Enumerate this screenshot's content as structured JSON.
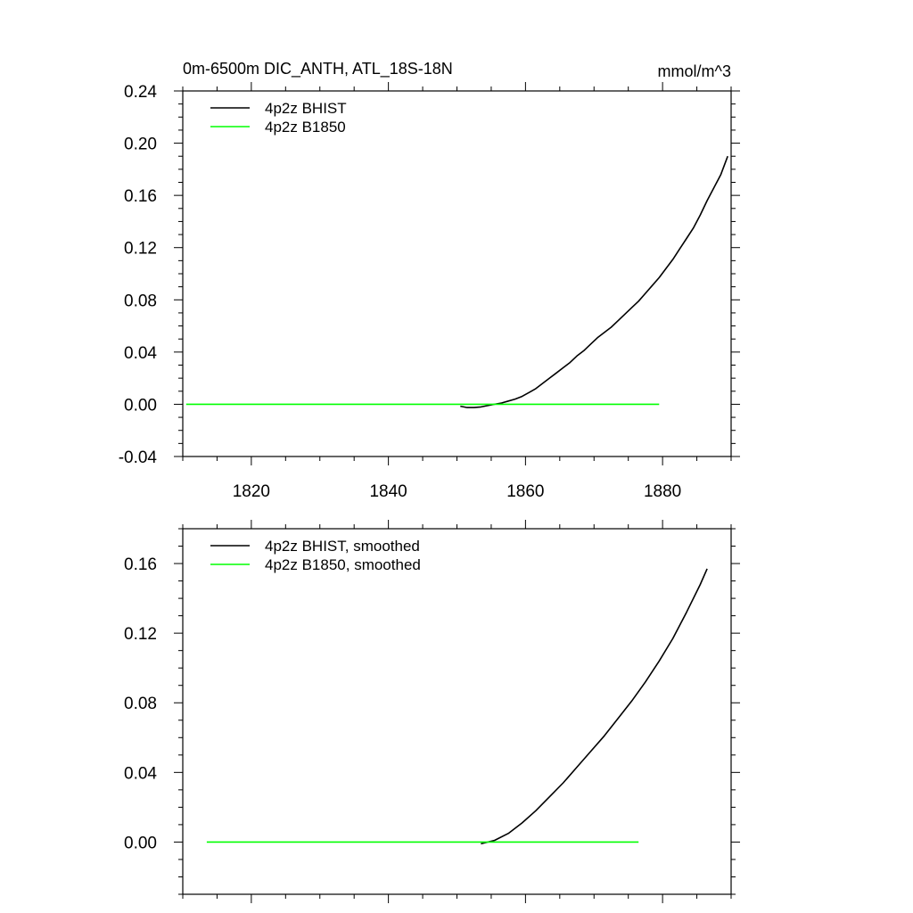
{
  "chart_data": [
    {
      "type": "line",
      "title": "0m-6500m DIC_ANTH, ATL_18S-18N",
      "units": "mmol/m^3",
      "xlabel": "",
      "ylabel": "",
      "xlim": [
        1810,
        1890
      ],
      "ylim": [
        -0.04,
        0.24
      ],
      "xticks": [
        1820,
        1840,
        1860,
        1880
      ],
      "xtick_labels": [
        "1820",
        "1840",
        "1860",
        "1880"
      ],
      "yticks": [
        -0.04,
        0.0,
        0.04,
        0.08,
        0.12,
        0.16,
        0.2,
        0.24
      ],
      "ytick_labels": [
        "-0.04",
        "0.00",
        "0.04",
        "0.08",
        "0.12",
        "0.16",
        "0.20",
        "0.24"
      ],
      "legend_position": "top-left",
      "grid": false,
      "series": [
        {
          "name": "4p2z BHIST",
          "color": "#000000",
          "x": [
            1850.5,
            1851.5,
            1852.5,
            1853.5,
            1854.5,
            1855.5,
            1856.5,
            1857.5,
            1858.5,
            1859.5,
            1860.5,
            1861.5,
            1862.5,
            1863.5,
            1864.5,
            1865.5,
            1866.5,
            1867.5,
            1868.5,
            1869.5,
            1870.5,
            1871.5,
            1872.5,
            1873.5,
            1874.5,
            1875.5,
            1876.5,
            1877.5,
            1878.5,
            1879.5,
            1880.5,
            1881.5,
            1882.5,
            1883.5,
            1884.5,
            1885.5,
            1886.5,
            1887.5,
            1888.5,
            1889.5
          ],
          "y": [
            -0.0015,
            -0.0025,
            -0.0025,
            -0.002,
            -0.001,
            0.0,
            0.001,
            0.0025,
            0.004,
            0.006,
            0.009,
            0.012,
            0.016,
            0.02,
            0.024,
            0.028,
            0.032,
            0.037,
            0.041,
            0.046,
            0.051,
            0.055,
            0.059,
            0.064,
            0.069,
            0.074,
            0.079,
            0.085,
            0.091,
            0.097,
            0.104,
            0.111,
            0.119,
            0.127,
            0.135,
            0.145,
            0.156,
            0.166,
            0.176,
            0.19
          ]
        },
        {
          "name": "4p2z B1850",
          "color": "#00ff00",
          "x": [
            1810.5,
            1879.5
          ],
          "y": [
            0.0,
            0.0
          ]
        }
      ]
    },
    {
      "type": "line",
      "title": "",
      "units": "",
      "xlabel": "",
      "ylabel": "",
      "xlim": [
        1810,
        1890
      ],
      "ylim": [
        -0.03,
        0.18
      ],
      "xticks": [
        1820,
        1840,
        1860,
        1880
      ],
      "xtick_labels": [],
      "yticks": [
        0.0,
        0.04,
        0.08,
        0.12,
        0.16
      ],
      "ytick_labels": [
        "0.00",
        "0.04",
        "0.08",
        "0.12",
        "0.16"
      ],
      "legend_position": "top-left",
      "grid": false,
      "series": [
        {
          "name": "4p2z BHIST, smoothed",
          "color": "#000000",
          "x": [
            1853.5,
            1855.5,
            1857.5,
            1859.5,
            1861.5,
            1863.5,
            1865.5,
            1867.5,
            1869.5,
            1871.5,
            1873.5,
            1875.5,
            1877.5,
            1879.5,
            1881.5,
            1883.5,
            1885.5,
            1886.5
          ],
          "y": [
            -0.001,
            0.001,
            0.005,
            0.011,
            0.018,
            0.026,
            0.034,
            0.043,
            0.052,
            0.061,
            0.071,
            0.081,
            0.092,
            0.104,
            0.117,
            0.132,
            0.148,
            0.157
          ]
        },
        {
          "name": "4p2z B1850, smoothed",
          "color": "#00ff00",
          "x": [
            1813.5,
            1876.5
          ],
          "y": [
            0.0,
            0.0
          ]
        }
      ]
    }
  ]
}
